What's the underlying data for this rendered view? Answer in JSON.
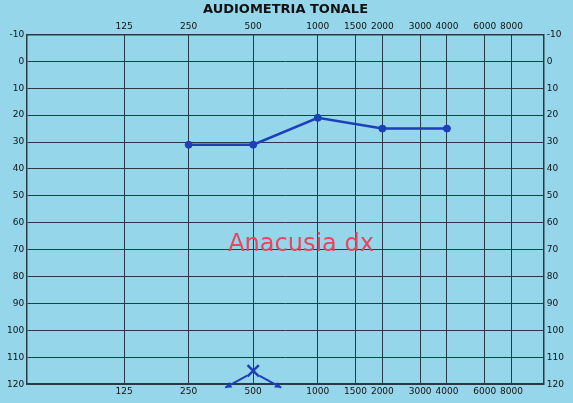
{
  "chart_data": {
    "type": "line",
    "title": "AUDIOMETRIA TONALE",
    "x": [
      250,
      500,
      1000,
      2000,
      4000
    ],
    "series": [
      {
        "color": "#1d3fb8",
        "values": [
          31,
          31,
          21,
          25,
          25
        ],
        "marker": "circle",
        "line_style": "solid"
      },
      {
        "type": "scatter",
        "color": "#1d3fb8",
        "values": [
          null,
          115,
          null,
          null,
          null
        ],
        "marker": "cross"
      }
    ],
    "annotations": [
      {
        "text": "Anacusia dx",
        "color": "#e8455e"
      }
    ],
    "log": "x",
    "xlim": [
      44.19,
      11314
    ],
    "xticks": [
      125,
      250,
      500,
      1000,
      1500,
      2000,
      3000,
      4000,
      6000,
      8000
    ],
    "ylim": [
      -10,
      120
    ],
    "yticks": [
      -10,
      0,
      10,
      20,
      30,
      40,
      50,
      60,
      70,
      80,
      90,
      100,
      110,
      120
    ],
    "grid": true
  }
}
